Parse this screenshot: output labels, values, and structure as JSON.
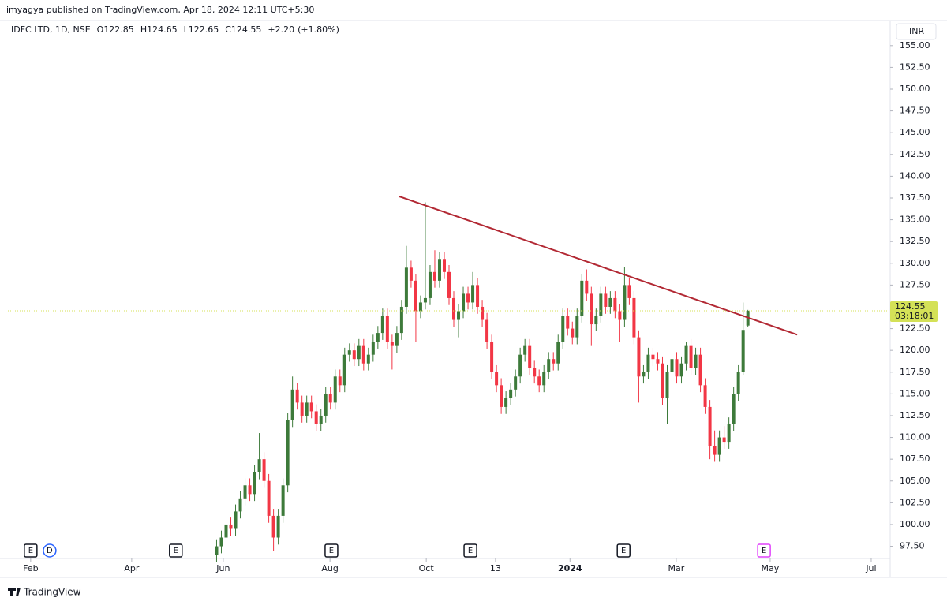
{
  "header": {
    "published": "imyagya published on TradingView.com, Apr 18, 2024 12:11 UTC+5:30"
  },
  "currency": "INR",
  "footer": {
    "brand": "TradingView"
  },
  "chart_data": {
    "type": "candlestick",
    "title": "IDFC LTD, 1D, NSE",
    "legend_labels": [
      "O",
      "H",
      "L",
      "C"
    ],
    "change": "+2.20",
    "change_pct": "(+1.80%)",
    "countdown": "03:18:01",
    "up_color": "#3d7a3a",
    "down_color": "#f23645",
    "last_price_color": "#d4e157",
    "grid": false,
    "open": [
      96.5,
      97.5,
      98.5,
      100,
      99.5,
      101.5,
      103,
      104.5,
      103.5,
      106,
      107.5,
      105,
      101,
      98.5,
      101,
      104.5,
      112,
      115.5,
      114,
      112.5,
      114,
      113,
      111.5,
      112.5,
      115,
      114,
      117,
      116,
      119.5,
      120,
      119,
      120.5,
      118.5,
      119.5,
      121,
      122,
      124,
      121,
      120.5,
      122,
      125,
      129.5,
      128,
      124.5,
      125.5,
      126,
      129,
      128,
      130.5,
      129,
      126,
      123.5,
      124.5,
      126.5,
      125.5,
      127.5,
      125,
      123.5,
      121,
      117.5,
      116,
      113.5,
      114.5,
      115.5,
      117,
      119.5,
      120.5,
      118,
      117,
      116,
      117.5,
      119,
      118.5,
      121,
      124,
      122.5,
      121.5,
      124,
      128,
      126.5,
      123,
      124,
      126.5,
      125,
      126,
      124.5,
      123.5,
      127.5,
      126,
      121.5,
      117,
      117.5,
      119.5,
      119,
      118.5,
      114.5,
      117.5,
      119,
      117,
      118.5,
      120.5,
      118,
      119.5,
      116,
      113.5,
      109,
      108,
      110,
      109.5,
      111.5,
      115,
      117.5,
      122.85
    ],
    "high": [
      98.3,
      99.3,
      100.8,
      100.8,
      102.3,
      103.8,
      105.3,
      105.3,
      106.8,
      110.5,
      108.3,
      105.8,
      101.8,
      101.8,
      105.3,
      112.8,
      117,
      116.3,
      114.8,
      114.8,
      114.8,
      113.8,
      113.3,
      115.8,
      115.8,
      117.8,
      117.8,
      120.3,
      120.8,
      120.8,
      121.3,
      121.3,
      120.3,
      121.8,
      122.8,
      124.8,
      124.8,
      121.8,
      122.8,
      125.8,
      132,
      130.3,
      128.8,
      126.3,
      137,
      129.8,
      131.5,
      131.3,
      131.3,
      129.8,
      126.8,
      125.3,
      127.3,
      127.3,
      129,
      128.3,
      125.8,
      124.3,
      121.8,
      118.3,
      116.8,
      115.3,
      116.3,
      117.8,
      120.3,
      121.3,
      121.3,
      118.8,
      117.8,
      118.3,
      119.8,
      119.8,
      121.8,
      124.8,
      124.8,
      123.3,
      124.8,
      128.8,
      129.3,
      127.3,
      124.8,
      127.3,
      127.3,
      126.8,
      126.8,
      125.3,
      129.6,
      128.3,
      126.8,
      122.3,
      118.3,
      120.3,
      120.3,
      119.8,
      119.3,
      118.3,
      119.8,
      119.8,
      119.3,
      121,
      121.3,
      120.3,
      120.3,
      116.8,
      114.3,
      110.8,
      110.8,
      111.3,
      112.3,
      115.8,
      118.3,
      125.5,
      124.65
    ],
    "low": [
      95.7,
      96.7,
      97.7,
      98.7,
      98.7,
      100.7,
      102.2,
      102.7,
      102.7,
      105.2,
      104.2,
      100.2,
      97,
      97.7,
      100.2,
      103.7,
      111.2,
      113.2,
      111.7,
      111.7,
      112.2,
      110.7,
      110.7,
      111.7,
      113.2,
      113.2,
      115.2,
      115.2,
      118.7,
      118.2,
      118.2,
      117.7,
      117.7,
      118.7,
      120.2,
      121.2,
      120.2,
      117.8,
      119.7,
      121.2,
      124.2,
      127.2,
      121,
      123.7,
      124.7,
      125.2,
      127.2,
      127.2,
      128.2,
      125.2,
      122.7,
      121.5,
      123.7,
      124.7,
      124.7,
      124.2,
      122.7,
      120.2,
      116.7,
      115.2,
      112.7,
      112.7,
      113.7,
      114.7,
      116.2,
      118.7,
      117.2,
      116.2,
      115.2,
      115.2,
      116.7,
      117.7,
      117.7,
      120.2,
      121.7,
      120.7,
      120.7,
      123.2,
      125.7,
      120.5,
      122.2,
      123.2,
      124.2,
      124.2,
      123.7,
      121,
      122.7,
      125.2,
      120.7,
      114,
      116.2,
      116.7,
      118.2,
      117.7,
      113.7,
      111.5,
      116.7,
      116.2,
      116.2,
      117.7,
      117.2,
      117.2,
      115.2,
      112.7,
      107.5,
      107.2,
      107.2,
      108.7,
      108.7,
      110.7,
      114.2,
      117.2,
      122.65
    ],
    "close": [
      97.5,
      98.5,
      100,
      99.5,
      101.5,
      103,
      104.5,
      103.5,
      106,
      107.5,
      105,
      101,
      98.5,
      101,
      104.5,
      112,
      115.5,
      114,
      112.5,
      114,
      113,
      111.5,
      112.5,
      115,
      114,
      117,
      116,
      119.5,
      120,
      119,
      120.5,
      118.5,
      119.5,
      121,
      122,
      124,
      121,
      120.5,
      122,
      125,
      129.5,
      128,
      124.5,
      125.5,
      126,
      129,
      128,
      130.5,
      129,
      126,
      123.5,
      124.5,
      126.5,
      125.5,
      127.5,
      125,
      123.5,
      121,
      117.5,
      116,
      113.5,
      114.5,
      115.5,
      117,
      119.5,
      120.5,
      118,
      117,
      116,
      117.5,
      119,
      118.5,
      121,
      124,
      122.5,
      121.5,
      124,
      128,
      126.5,
      123,
      124,
      126.5,
      125,
      126,
      124.5,
      123.5,
      127.5,
      126,
      121.5,
      117,
      117.5,
      119.5,
      119,
      118.5,
      114.5,
      117.5,
      119,
      117,
      118.5,
      120.5,
      118,
      119.5,
      116,
      113.5,
      109,
      108,
      110,
      109.5,
      111.5,
      115,
      117.5,
      122.35,
      124.55
    ],
    "trendline": {
      "color": "#b22833",
      "x": [
        38.4,
        122.4
      ],
      "y": [
        137.7,
        121.8
      ]
    },
    "events": [
      {
        "label": "E",
        "x": -39.2,
        "color": "#131722"
      },
      {
        "label": "D",
        "x": -35.2,
        "color": "#2962ff"
      },
      {
        "label": "E",
        "x": -8.6,
        "color": "#131722"
      },
      {
        "label": "E",
        "x": 24.2,
        "color": "#131722"
      },
      {
        "label": "E",
        "x": 53.5,
        "color": "#131722"
      },
      {
        "label": "E",
        "x": 85.8,
        "color": "#131722"
      },
      {
        "label": "E",
        "x": 115.4,
        "color": "#e040fb"
      }
    ],
    "xlim": [
      -44,
      142
    ],
    "xticks": [
      {
        "value": -39.2,
        "label": "Feb"
      },
      {
        "value": -17.9,
        "label": "Apr"
      },
      {
        "value": 1.4,
        "label": "Jun"
      },
      {
        "value": 23.9,
        "label": "Aug"
      },
      {
        "value": 44.2,
        "label": "Oct"
      },
      {
        "value": 58.8,
        "label": "13"
      },
      {
        "value": 74.5,
        "label": "2024"
      },
      {
        "value": 96.9,
        "label": "Mar"
      },
      {
        "value": 116.7,
        "label": "May"
      },
      {
        "value": 138.0,
        "label": "Jul"
      }
    ],
    "ylim": [
      96.1,
      157.7
    ],
    "yticks": [
      {
        "value": 97.5,
        "label": "97.50"
      },
      {
        "value": 100,
        "label": "100.00"
      },
      {
        "value": 102.5,
        "label": "102.50"
      },
      {
        "value": 105,
        "label": "105.00"
      },
      {
        "value": 107.5,
        "label": "107.50"
      },
      {
        "value": 110,
        "label": "110.00"
      },
      {
        "value": 112.5,
        "label": "112.50"
      },
      {
        "value": 115,
        "label": "115.00"
      },
      {
        "value": 117.5,
        "label": "117.50"
      },
      {
        "value": 120,
        "label": "120.00"
      },
      {
        "value": 122.5,
        "label": "122.50"
      },
      {
        "value": 125,
        "label": "125.00"
      },
      {
        "value": 127.5,
        "label": "127.50"
      },
      {
        "value": 130,
        "label": "130.00"
      },
      {
        "value": 132.5,
        "label": "132.50"
      },
      {
        "value": 135,
        "label": "135.00"
      },
      {
        "value": 137.5,
        "label": "137.50"
      },
      {
        "value": 140,
        "label": "140.00"
      },
      {
        "value": 142.5,
        "label": "142.50"
      },
      {
        "value": 145,
        "label": "145.00"
      },
      {
        "value": 147.5,
        "label": "147.50"
      },
      {
        "value": 150,
        "label": "150.00"
      },
      {
        "value": 152.5,
        "label": "152.50"
      },
      {
        "value": 155,
        "label": "155.00"
      }
    ]
  }
}
